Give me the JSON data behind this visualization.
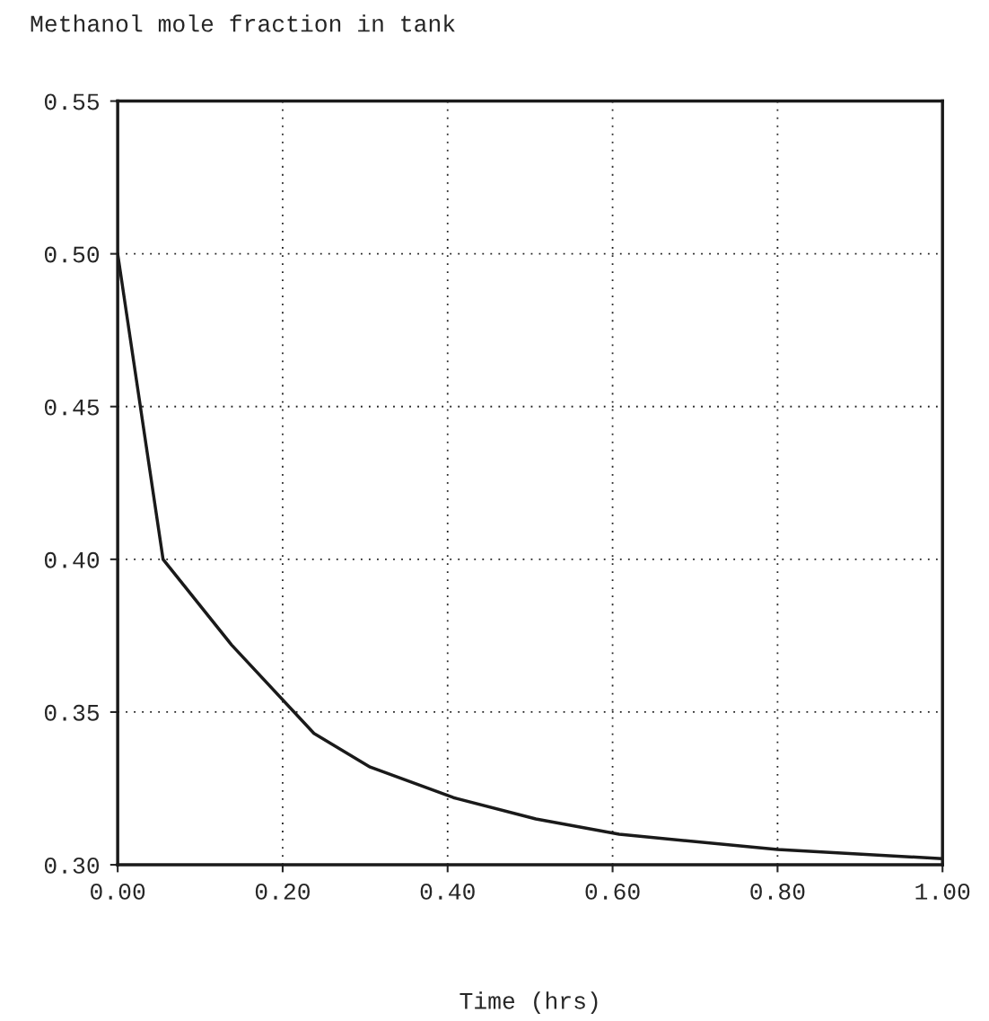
{
  "chart_data": {
    "type": "line",
    "title": "Methanol mole fraction in tank",
    "xlabel": "Time (hrs)",
    "x": [
      0,
      0.055,
      0.138,
      0.238,
      0.306,
      0.407,
      0.507,
      0.608,
      0.8,
      1.0
    ],
    "series": [
      {
        "color": "#1a1a1a",
        "values": [
          0.5,
          0.4,
          0.372,
          0.343,
          0.332,
          0.322,
          0.315,
          0.31,
          0.305,
          0.302
        ]
      }
    ],
    "xlim": [
      0,
      1.0
    ],
    "ylim": [
      0.3,
      0.55
    ],
    "xticks": [
      {
        "value": 0,
        "label": "0.00"
      },
      {
        "value": 0.2,
        "label": "0.20"
      },
      {
        "value": 0.4,
        "label": "0.40"
      },
      {
        "value": 0.6,
        "label": "0.60"
      },
      {
        "value": 0.8,
        "label": "0.80"
      },
      {
        "value": 1.0,
        "label": "1.00"
      }
    ],
    "yticks": [
      {
        "value": 0.3,
        "label": "0.30"
      },
      {
        "value": 0.35,
        "label": "0.35"
      },
      {
        "value": 0.4,
        "label": "0.40"
      },
      {
        "value": 0.45,
        "label": "0.45"
      },
      {
        "value": 0.5,
        "label": "0.50"
      },
      {
        "value": 0.55,
        "label": "0.55"
      }
    ],
    "grid": true,
    "line_style": "solid",
    "marker": "none"
  }
}
